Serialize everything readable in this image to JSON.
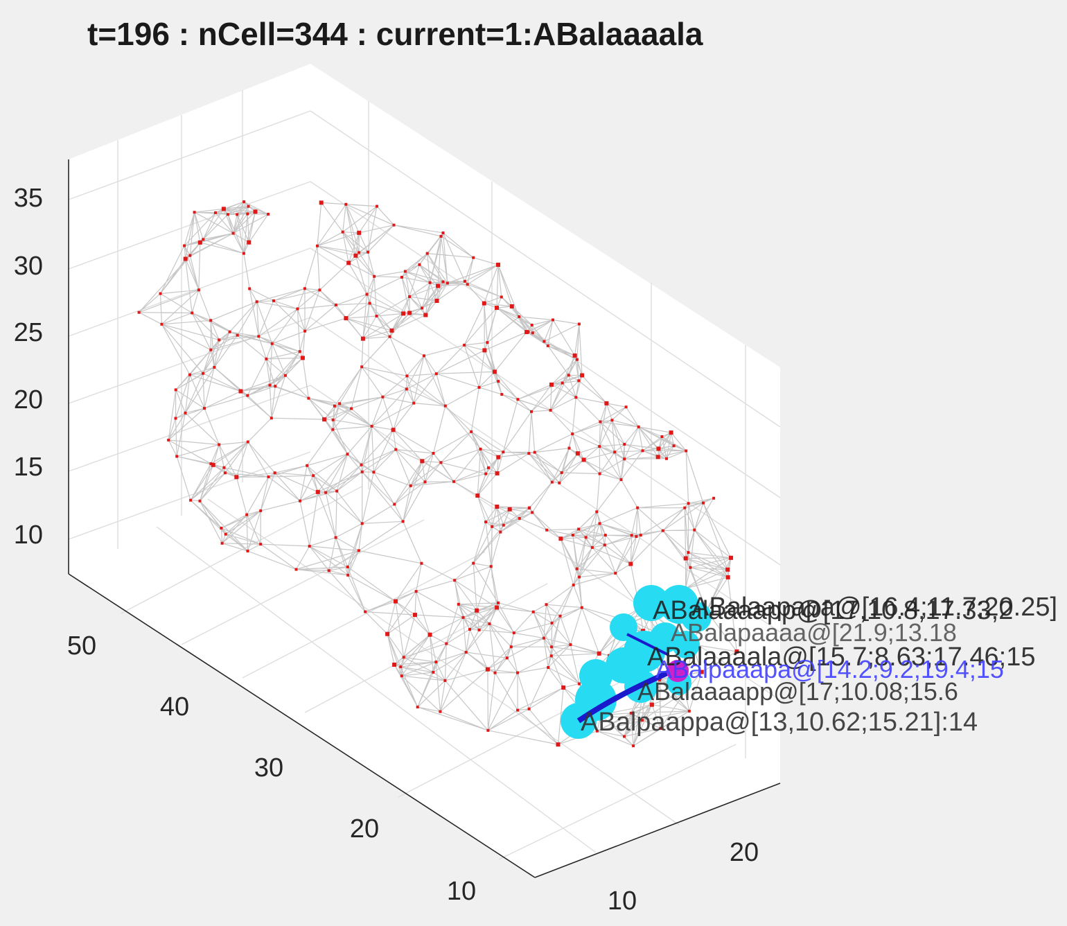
{
  "title": "t=196 : nCell=344 : current=1:ABalaaaala",
  "chart_data": {
    "type": "scatter",
    "title": "t=196 : nCell=344 : current=1:ABalaaaala",
    "dimensions": 3,
    "grid": true,
    "axes": {
      "x": {
        "ticks": [
          10,
          20
        ]
      },
      "y": {
        "ticks": [
          10,
          20,
          30,
          40,
          50
        ]
      },
      "z": {
        "ticks": [
          10,
          15,
          20,
          25,
          30,
          35
        ]
      }
    },
    "series": [
      {
        "marker": "square",
        "edges": "delaunay mesh",
        "count": 344
      },
      {
        "marker": "circle",
        "highlight": "neighbors"
      }
    ],
    "annotations": [
      "ABalaaaapp@[17,10.8,17.33,2",
      "ABalaapapa@[16.4;11.7;20.25]",
      "ABalapaaaa@[21.9;13.18",
      "ABalaaaala@[15.7;8.63;17.46;15",
      "ABalpaaapa@[14.2;9.2;19.4;15",
      "ABalaaaapp@[17;10.08;15.6",
      "ABalpaappa@[13,10.62;15.21]:14"
    ]
  },
  "colors": {
    "background": "#f0f0f0",
    "axes": "#ffffff",
    "grid": "#dddddd",
    "mesh": "#c6c6c6",
    "cell": "#e01818",
    "neighbor": "#27dcf2",
    "current": "#cc22cc",
    "link": "#1a1acc"
  }
}
